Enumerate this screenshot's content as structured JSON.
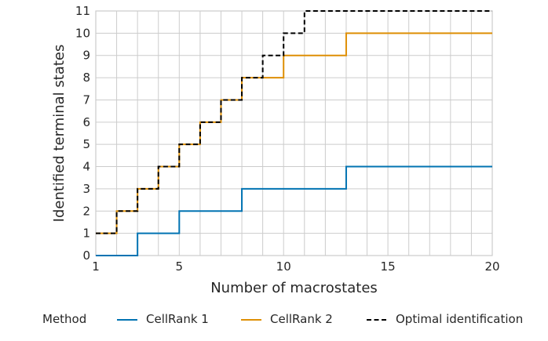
{
  "chart_data": {
    "type": "line",
    "drawstyle": "steps-post",
    "title": "",
    "xlabel": "Number of macrostates",
    "ylabel": "Identified terminal states",
    "xlim": [
      1,
      20
    ],
    "ylim": [
      0,
      11
    ],
    "xticks": [
      1,
      5,
      10,
      15,
      20
    ],
    "yticks": [
      0,
      1,
      2,
      3,
      4,
      5,
      6,
      7,
      8,
      9,
      10,
      11
    ],
    "grid": true,
    "x": [
      1,
      2,
      3,
      4,
      5,
      6,
      7,
      8,
      9,
      10,
      11,
      12,
      13,
      14,
      15,
      16,
      17,
      18,
      19,
      20
    ],
    "series": [
      {
        "name": "CellRank 1",
        "color": "#0173b2",
        "style": "solid",
        "values": [
          0,
          0,
          1,
          1,
          2,
          2,
          2,
          3,
          3,
          3,
          3,
          3,
          4,
          4,
          4,
          4,
          4,
          4,
          4,
          4
        ]
      },
      {
        "name": "CellRank 2",
        "color": "#de8f05",
        "style": "solid",
        "values": [
          1,
          2,
          3,
          4,
          5,
          6,
          7,
          8,
          8,
          9,
          9,
          9,
          10,
          10,
          10,
          10,
          10,
          10,
          10,
          10
        ]
      },
      {
        "name": "Optimal identification",
        "color": "#000000",
        "style": "dashed",
        "values": [
          1,
          2,
          3,
          4,
          5,
          6,
          7,
          8,
          9,
          10,
          11,
          11,
          11,
          11,
          11,
          11,
          11,
          11,
          11,
          11
        ]
      }
    ],
    "legend": {
      "title": "Method",
      "placement": "bottom"
    }
  }
}
